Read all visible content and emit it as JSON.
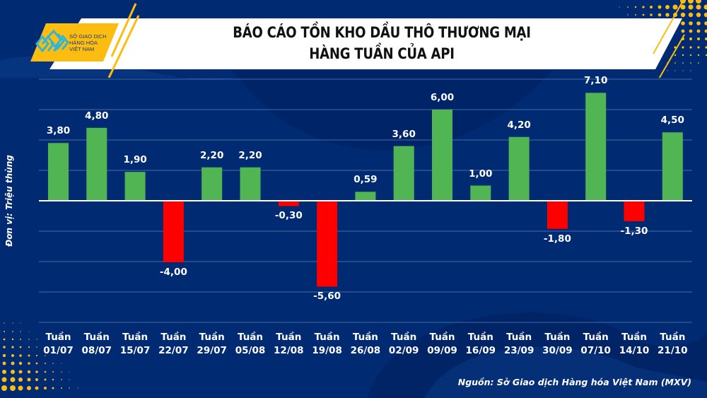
{
  "header": {
    "title_line1": "BÁO CÁO TỒN KHO DẦU THÔ THƯƠNG MẠI",
    "title_line2": "HÀNG TUẦN CỦA API",
    "logo": {
      "line1": "SỞ GIAO DỊCH",
      "line2": "HÀNG HÓA",
      "line3": "VIỆT NAM"
    }
  },
  "source": "Nguồn: Sở Giao dịch Hàng hóa Việt Nam (MXV)",
  "colors": {
    "background": "#002B73",
    "positive": "#52B553",
    "negative": "#FF0000",
    "accent": "#FDBD10",
    "gridline": "#4A6AA6"
  },
  "chart_data": {
    "type": "bar",
    "title": "BÁO CÁO TỒN KHO DẦU THÔ THƯƠNG MẠI HÀNG TUẦN CỦA API",
    "xlabel": "",
    "ylabel": "Đơn vị: Triệu thùng",
    "ylim": [
      -8,
      8
    ],
    "grid": true,
    "legend": "none",
    "categories": [
      "Tuần 01/07",
      "Tuần 08/07",
      "Tuần 15/07",
      "Tuần 22/07",
      "Tuần 29/07",
      "Tuần 05/08",
      "Tuần 12/08",
      "Tuần 19/08",
      "Tuần 26/08",
      "Tuần 02/09",
      "Tuần 09/09",
      "Tuần 16/09",
      "Tuần 23/09",
      "Tuần 30/09",
      "Tuần 07/10",
      "Tuần 14/10",
      "Tuần 21/10"
    ],
    "category_lines": [
      [
        "Tuần",
        "01/07"
      ],
      [
        "Tuần",
        "08/07"
      ],
      [
        "Tuần",
        "15/07"
      ],
      [
        "Tuần",
        "22/07"
      ],
      [
        "Tuần",
        "29/07"
      ],
      [
        "Tuần",
        "05/08"
      ],
      [
        "Tuần",
        "12/08"
      ],
      [
        "Tuần",
        "19/08"
      ],
      [
        "Tuần",
        "26/08"
      ],
      [
        "Tuần",
        "02/09"
      ],
      [
        "Tuần",
        "09/09"
      ],
      [
        "Tuần",
        "16/09"
      ],
      [
        "Tuần",
        "23/09"
      ],
      [
        "Tuần",
        "30/09"
      ],
      [
        "Tuần",
        "07/10"
      ],
      [
        "Tuần",
        "14/10"
      ],
      [
        "Tuần",
        "21/10"
      ]
    ],
    "values": [
      3.8,
      4.8,
      1.9,
      -4.0,
      2.2,
      2.2,
      -0.3,
      -5.6,
      0.59,
      3.6,
      6.0,
      1.0,
      4.2,
      -1.8,
      7.1,
      -1.3,
      4.5
    ],
    "value_labels": [
      "3,80",
      "4,80",
      "1,90",
      "-4,00",
      "2,20",
      "2,20",
      "-0,30",
      "-5,60",
      "0,59",
      "3,60",
      "6,00",
      "1,00",
      "4,20",
      "-1,80",
      "7,10",
      "-1,30",
      "4,50"
    ]
  }
}
